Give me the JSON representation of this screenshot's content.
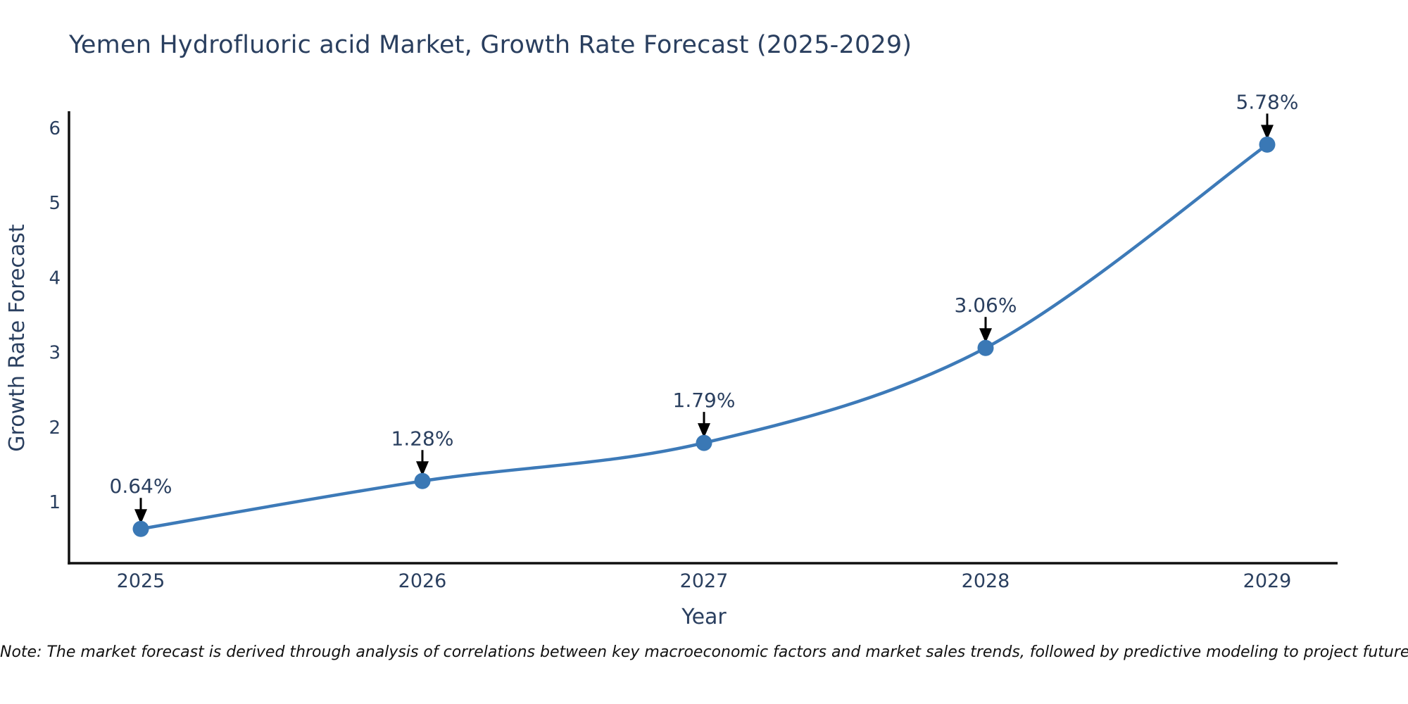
{
  "note": "Note: The market forecast is derived through analysis of correlations between key macroeconomic factors and market sales trends, followed by predictive modeling to project future sales.",
  "chart_data": {
    "type": "line",
    "title": "Yemen Hydrofluoric acid Market, Growth Rate Forecast (2025-2029)",
    "xlabel": "Year",
    "ylabel": "Growth Rate Forecast",
    "categories": [
      "2025",
      "2026",
      "2027",
      "2028",
      "2029"
    ],
    "values": [
      0.64,
      1.28,
      1.79,
      3.06,
      5.78
    ],
    "data_labels": [
      "0.64%",
      "1.28%",
      "1.79%",
      "3.06%",
      "5.78%"
    ],
    "yticks": [
      1,
      2,
      3,
      4,
      5,
      6
    ],
    "ylim": [
      0.17,
      6.2
    ],
    "line_shape": "spline",
    "grid": false,
    "legend": "none",
    "annotation_style": "black-arrow-pointing-down-to-marker",
    "colors": {
      "line": "#3d7ab8",
      "marker": "#3a78b5",
      "axis_line": "#101010",
      "axis_text": "#2a3f5f",
      "title_text": "#2a3f5f",
      "annotation_text": "#2a3f5f",
      "annotation_arrow": "#000000",
      "note_text": "#111111",
      "background": "#ffffff"
    }
  }
}
